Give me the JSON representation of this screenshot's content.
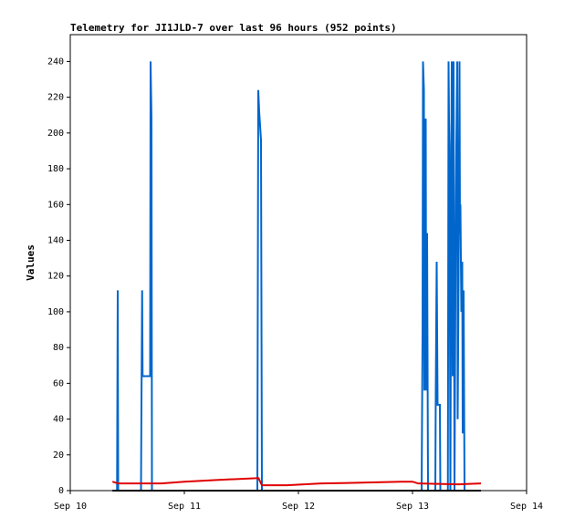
{
  "chart_data": {
    "type": "line",
    "title": "Telemetry for JI1JLD-7 over last 96 hours (952 points)",
    "y_label": "Values",
    "xlim": [
      10,
      14
    ],
    "xticks": [
      {
        "value": 10,
        "label": "Sep 10"
      },
      {
        "value": 11,
        "label": "Sep 11"
      },
      {
        "value": 12,
        "label": "Sep 12"
      },
      {
        "value": 13,
        "label": "Sep 13"
      },
      {
        "value": 14,
        "label": "Sep 14"
      }
    ],
    "ylim": [
      0,
      255
    ],
    "yticks": [
      0,
      20,
      40,
      60,
      80,
      100,
      120,
      140,
      160,
      180,
      200,
      220,
      240
    ],
    "grid": false,
    "series": [
      {
        "color": "#0066cc",
        "x": [
          10.37,
          10.41,
          10.416,
          10.42,
          10.62,
          10.624,
          10.63,
          10.634,
          10.7,
          10.704,
          10.712,
          10.716,
          11.64,
          11.648,
          11.656,
          11.664,
          11.672,
          11.68,
          13.08,
          13.088,
          13.092,
          13.1,
          13.104,
          13.108,
          13.116,
          13.12,
          13.128,
          13.136,
          13.2,
          13.204,
          13.212,
          13.22,
          13.24,
          13.244,
          13.31,
          13.316,
          13.32,
          13.324,
          13.332,
          13.34,
          13.344,
          13.352,
          13.36,
          13.368,
          13.38,
          13.384,
          13.392,
          13.396,
          13.404,
          13.412,
          13.416,
          13.42,
          13.428,
          13.436,
          13.44,
          13.448,
          13.456,
          13.6
        ],
        "values": [
          0,
          0,
          112,
          0,
          0,
          48,
          112,
          64,
          64,
          240,
          208,
          0,
          0,
          224,
          212,
          204,
          196,
          0,
          0,
          88,
          240,
          224,
          56,
          112,
          208,
          56,
          144,
          0,
          0,
          56,
          128,
          48,
          48,
          0,
          0,
          240,
          208,
          192,
          0,
          180,
          240,
          64,
          240,
          0,
          160,
          192,
          240,
          40,
          120,
          240,
          144,
          160,
          100,
          128,
          32,
          112,
          0,
          0
        ]
      },
      {
        "color": "#e00000",
        "x": [
          10.37,
          10.42,
          10.8,
          11.0,
          11.3,
          11.65,
          11.68,
          11.9,
          12.2,
          12.6,
          12.9,
          13.0,
          13.05,
          13.4,
          13.6
        ],
        "values": [
          5,
          4,
          4,
          5,
          6,
          7,
          3,
          3,
          4,
          4.5,
          5,
          5,
          4,
          3.5,
          4
        ]
      },
      {
        "color": "#000000",
        "x": [
          10.37,
          13.6
        ],
        "values": [
          0,
          0
        ]
      }
    ]
  }
}
